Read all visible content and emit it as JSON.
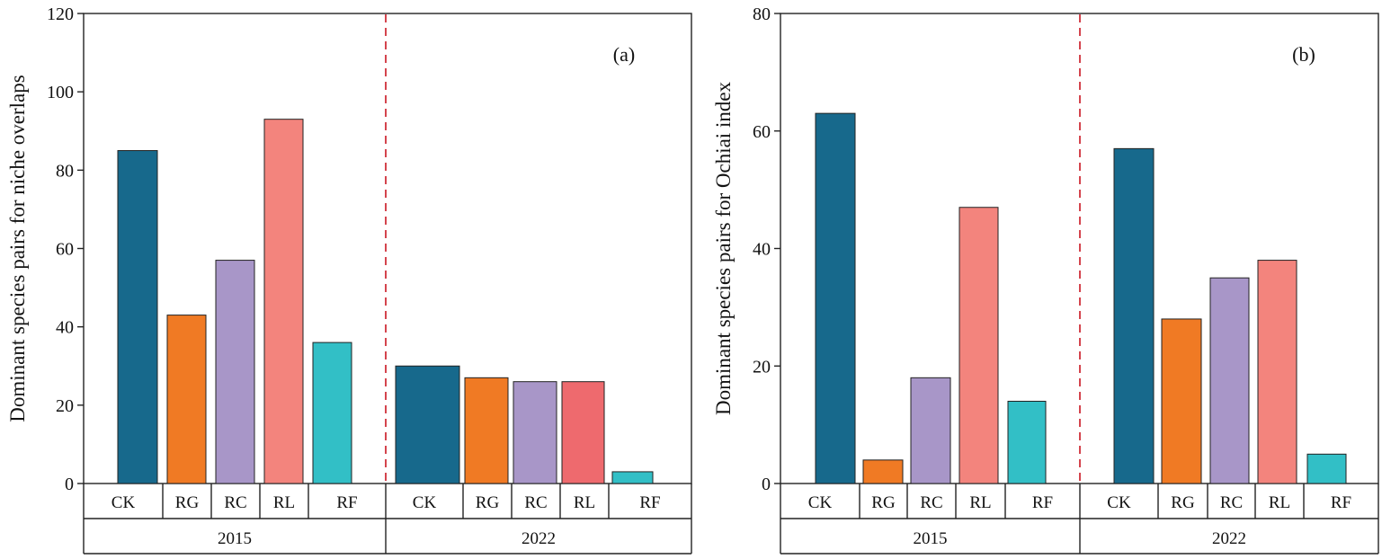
{
  "chart_data": [
    {
      "type": "bar",
      "panel_label": "(a)",
      "ylabel": "Dominant species  pairs for niche overlaps",
      "ylim": [
        0,
        120
      ],
      "yticks": [
        0,
        20,
        40,
        60,
        80,
        100,
        120
      ],
      "groups": [
        {
          "name": "2015",
          "categories": [
            "CK",
            "RG",
            "RC",
            "RL",
            "RF"
          ],
          "values": [
            85,
            43,
            57,
            93,
            36
          ],
          "colors": [
            "#17698c",
            "#f07a24",
            "#a896c8",
            "#f3847d",
            "#32bfc6"
          ]
        },
        {
          "name": "2022",
          "categories": [
            "CK",
            "RG",
            "RC",
            "RL",
            "RF"
          ],
          "values": [
            30,
            27,
            26,
            26,
            3
          ],
          "colors": [
            "#17698c",
            "#f07a24",
            "#a896c8",
            "#ee6a6e",
            "#32bfc6"
          ]
        }
      ]
    },
    {
      "type": "bar",
      "panel_label": "(b)",
      "ylabel": "Dominant species  pairs for Ochiai index",
      "ylim": [
        0,
        80
      ],
      "yticks": [
        0,
        20,
        40,
        60,
        80
      ],
      "groups": [
        {
          "name": "2015",
          "categories": [
            "CK",
            "RG",
            "RC",
            "RL",
            "RF"
          ],
          "values": [
            63,
            4,
            18,
            47,
            14
          ],
          "colors": [
            "#17698c",
            "#f07a24",
            "#a896c8",
            "#f3847d",
            "#32bfc6"
          ]
        },
        {
          "name": "2022",
          "categories": [
            "CK",
            "RG",
            "RC",
            "RL",
            "RF"
          ],
          "values": [
            57,
            28,
            35,
            38,
            5
          ],
          "colors": [
            "#17698c",
            "#f07a24",
            "#a896c8",
            "#f3847d",
            "#32bfc6"
          ]
        }
      ]
    }
  ]
}
